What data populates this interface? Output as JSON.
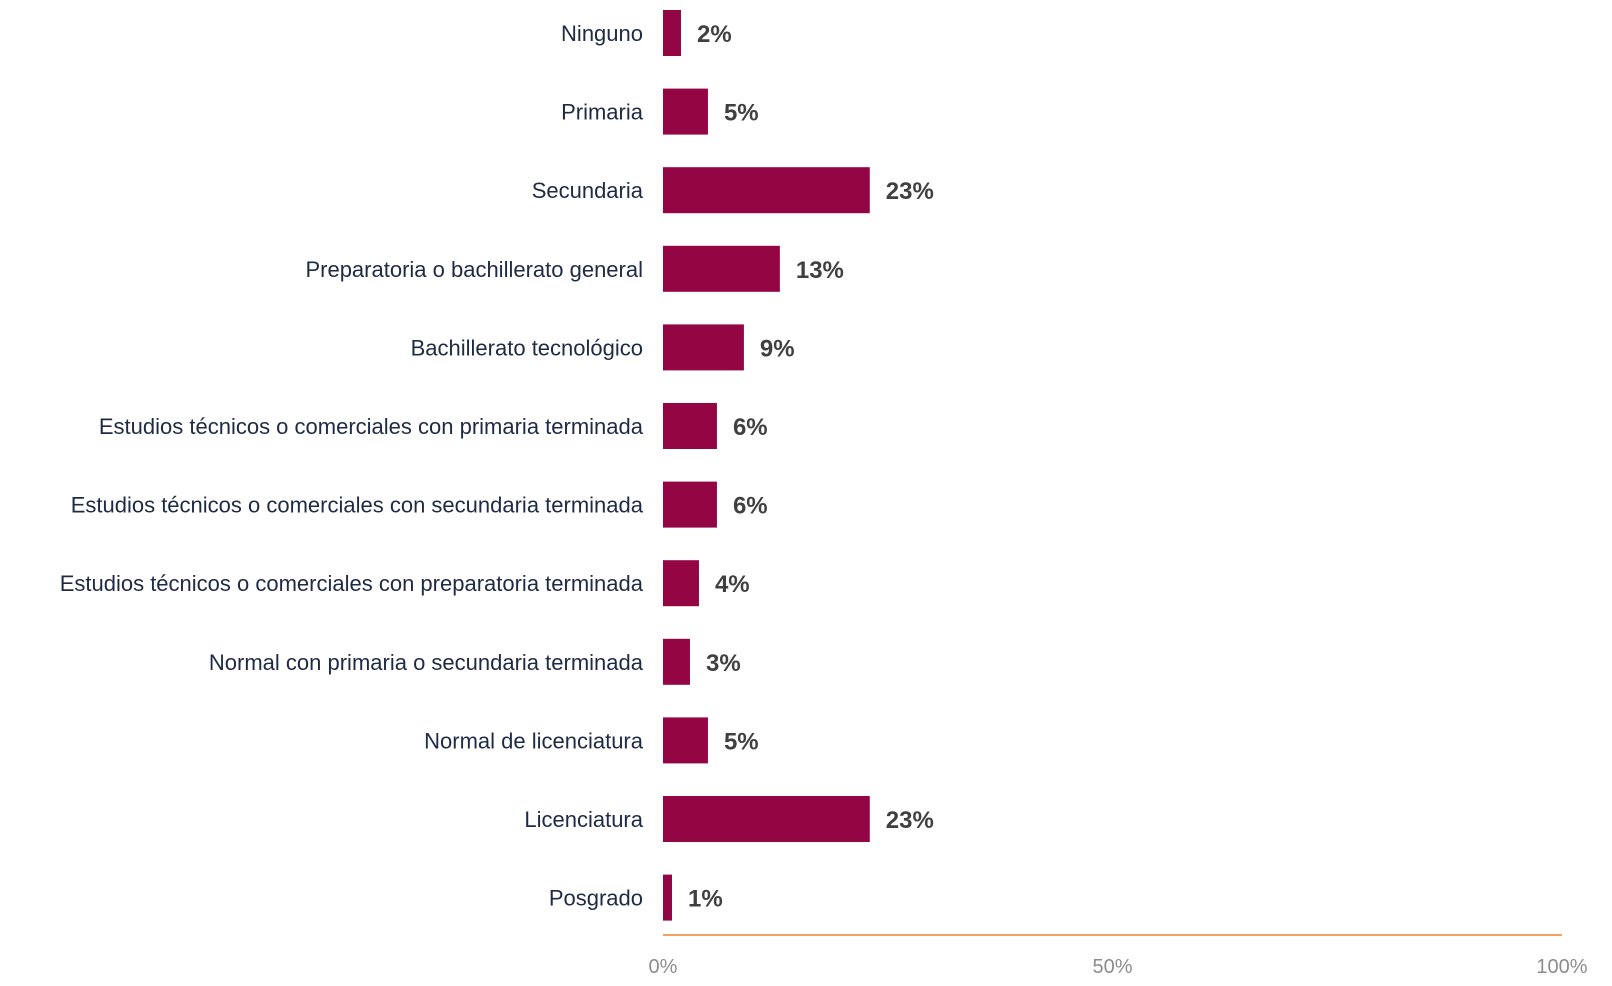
{
  "chart_data": {
    "type": "bar",
    "orientation": "horizontal",
    "categories": [
      "Ninguno",
      "Primaria",
      "Secundaria",
      "Preparatoria o bachillerato general",
      "Bachillerato tecnológico",
      "Estudios técnicos o comerciales con primaria terminada",
      "Estudios técnicos o comerciales con secundaria terminada",
      "Estudios técnicos o comerciales con preparatoria terminada",
      "Normal con primaria o secundaria terminada",
      "Normal de licenciatura",
      "Licenciatura",
      "Posgrado"
    ],
    "values": [
      2,
      5,
      23,
      13,
      9,
      6,
      6,
      4,
      3,
      5,
      23,
      1
    ],
    "value_labels": [
      "2%",
      "5%",
      "23%",
      "13%",
      "9%",
      "6%",
      "6%",
      "4%",
      "3%",
      "5%",
      "23%",
      "1%"
    ],
    "xlim": [
      0,
      100
    ],
    "x_ticks": [
      0,
      50,
      100
    ],
    "x_tick_labels": [
      "0%",
      "50%",
      "100%"
    ],
    "title": "",
    "xlabel": "",
    "ylabel": "",
    "grid": false,
    "legend": "none",
    "colors": {
      "bar": "#940543",
      "axis_line": "#f2a165",
      "category_text": "#1f2a44",
      "value_text": "#404040",
      "tick_text": "#8c8c8c"
    }
  }
}
